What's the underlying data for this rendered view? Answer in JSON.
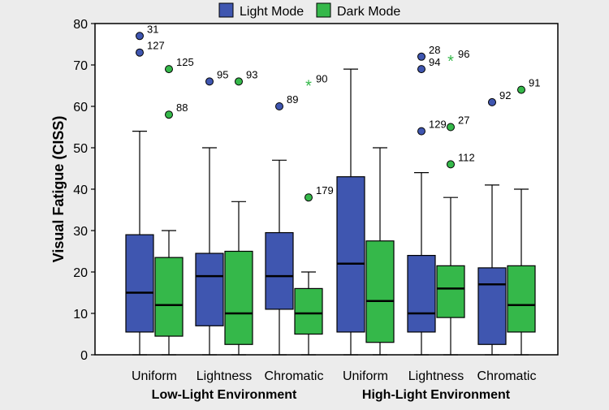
{
  "chart_data": {
    "type": "box",
    "title": "",
    "ylabel": "Visual Fatigue (CISS)",
    "ylim": [
      0,
      80
    ],
    "yticks": [
      0,
      10,
      20,
      30,
      40,
      50,
      60,
      70,
      80
    ],
    "grid": false,
    "legend_position": "top",
    "groups": [
      "Low-Light Environment",
      "High-Light Environment"
    ],
    "categories": [
      "Uniform",
      "Lightness",
      "Chromatic",
      "Uniform",
      "Lightness",
      "Chromatic"
    ],
    "series": [
      {
        "name": "Light Mode",
        "color": "#3f56b0",
        "boxes": [
          {
            "min": 0,
            "q1": 5.5,
            "median": 15,
            "q3": 29,
            "max": 54
          },
          {
            "min": 0,
            "q1": 7,
            "median": 19,
            "q3": 24.5,
            "max": 50
          },
          {
            "min": 0,
            "q1": 11,
            "median": 19,
            "q3": 29.5,
            "max": 47
          },
          {
            "min": 0,
            "q1": 5.5,
            "median": 22,
            "q3": 43,
            "max": 69
          },
          {
            "min": 0,
            "q1": 5.5,
            "median": 10,
            "q3": 24,
            "max": 44
          },
          {
            "min": 0,
            "q1": 2.5,
            "median": 17,
            "q3": 21,
            "max": 41
          }
        ]
      },
      {
        "name": "Dark Mode",
        "color": "#35b84a",
        "boxes": [
          {
            "min": 0,
            "q1": 4.5,
            "median": 12,
            "q3": 23.5,
            "max": 30
          },
          {
            "min": 0,
            "q1": 2.5,
            "median": 10,
            "q3": 25,
            "max": 37
          },
          {
            "min": 0,
            "q1": 5,
            "median": 10,
            "q3": 16,
            "max": 20
          },
          {
            "min": 0,
            "q1": 3,
            "median": 13,
            "q3": 27.5,
            "max": 50
          },
          {
            "min": 0,
            "q1": 9,
            "median": 16,
            "q3": 21.5,
            "max": 38
          },
          {
            "min": 0,
            "q1": 5.5,
            "median": 12,
            "q3": 21.5,
            "max": 40
          }
        ]
      }
    ],
    "outliers": [
      {
        "category": 0,
        "series": 0,
        "y": 77,
        "label": "31",
        "marker": "circle"
      },
      {
        "category": 0,
        "series": 0,
        "y": 73,
        "label": "127",
        "marker": "circle"
      },
      {
        "category": 0,
        "series": 1,
        "y": 69,
        "label": "125",
        "marker": "circle"
      },
      {
        "category": 0,
        "series": 1,
        "y": 58,
        "label": "88",
        "marker": "circle"
      },
      {
        "category": 1,
        "series": 0,
        "y": 66,
        "label": "95",
        "marker": "circle"
      },
      {
        "category": 1,
        "series": 1,
        "y": 66,
        "label": "93",
        "marker": "circle"
      },
      {
        "category": 2,
        "series": 0,
        "y": 60,
        "label": "89",
        "marker": "circle"
      },
      {
        "category": 2,
        "series": 1,
        "y": 65,
        "label": "90",
        "marker": "star"
      },
      {
        "category": 2,
        "series": 1,
        "y": 38,
        "label": "179",
        "marker": "circle"
      },
      {
        "category": 4,
        "series": 0,
        "y": 72,
        "label": "28",
        "marker": "circle"
      },
      {
        "category": 4,
        "series": 0,
        "y": 69,
        "label": "94",
        "marker": "circle"
      },
      {
        "category": 4,
        "series": 0,
        "y": 54,
        "label": "129",
        "marker": "circle"
      },
      {
        "category": 4,
        "series": 1,
        "y": 71,
        "label": "96",
        "marker": "star"
      },
      {
        "category": 4,
        "series": 1,
        "y": 55,
        "label": "27",
        "marker": "circle"
      },
      {
        "category": 4,
        "series": 1,
        "y": 46,
        "label": "112",
        "marker": "circle"
      },
      {
        "category": 5,
        "series": 0,
        "y": 61,
        "label": "92",
        "marker": "circle"
      },
      {
        "category": 5,
        "series": 1,
        "y": 64,
        "label": "91",
        "marker": "circle"
      }
    ]
  }
}
